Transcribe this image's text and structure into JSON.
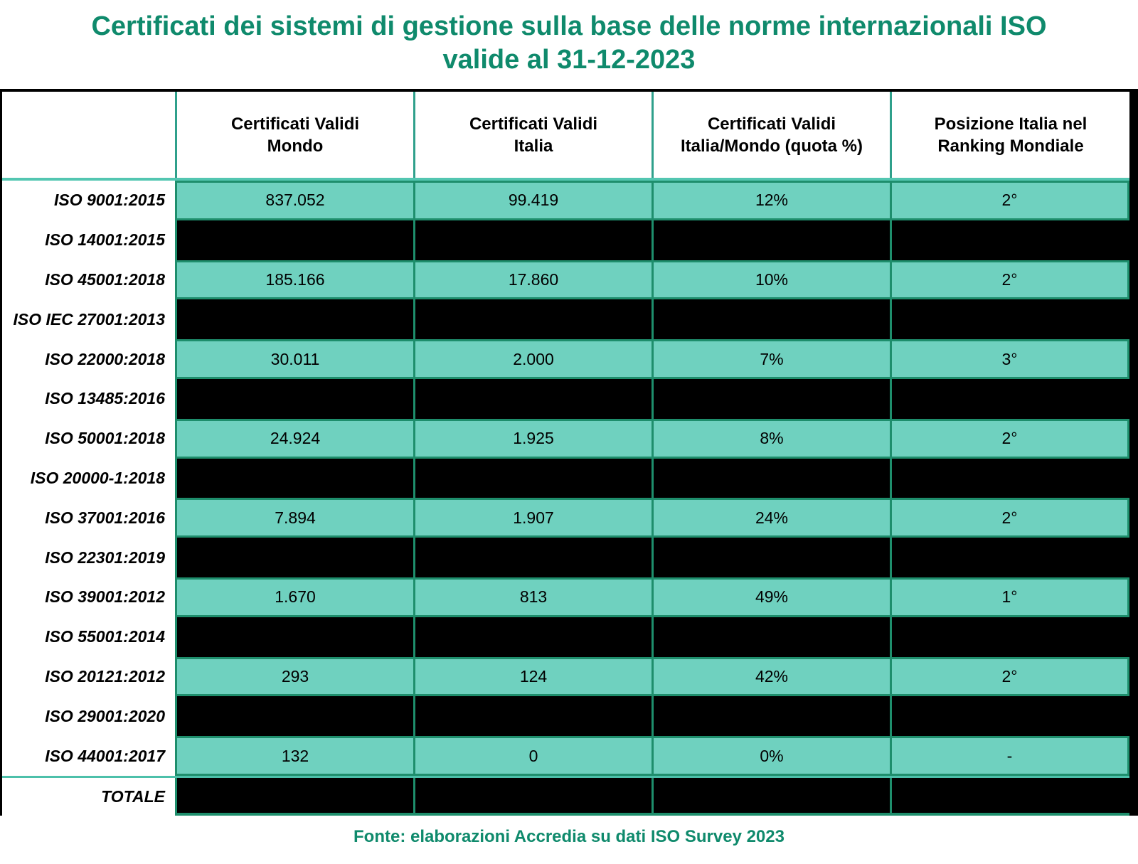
{
  "title": {
    "line1": "Certificati dei sistemi di gestione sulla base delle norme internazionali ISO",
    "line2": "valide al 31-12-2023"
  },
  "footer": {
    "source": "Fonte: elaborazioni Accredia su dati ISO Survey 2023"
  },
  "colors": {
    "accent_teal_text": "#0f8a6c",
    "cell_fill_teal": "#6fd1bf",
    "cell_border_dark_teal": "#1e8e6c",
    "header_separator_teal": "#2fa08b",
    "header_underline_teal": "#53c6b1",
    "blackout": "#000000",
    "background": "#ffffff"
  },
  "chart_data": {
    "type": "table",
    "title": "Certificati dei sistemi di gestione sulla base delle norme internazionali ISO valide al 31-12-2023",
    "columns": [
      {
        "line1": "Certificati Validi",
        "line2": "Mondo"
      },
      {
        "line1": "Certificati Validi",
        "line2": "Italia"
      },
      {
        "line1": "Certificati Validi",
        "line2": "Italia/Mondo (quota %)"
      },
      {
        "line1": "Posizione Italia nel",
        "line2": "Ranking Mondiale"
      }
    ],
    "rows": [
      {
        "label": "ISO 9001:2015",
        "blackout": false,
        "values": [
          "837.052",
          "99.419",
          "12%",
          "2°"
        ]
      },
      {
        "label": "ISO 14001:2015",
        "blackout": true,
        "values": [
          null,
          null,
          null,
          null
        ]
      },
      {
        "label": "ISO 45001:2018",
        "blackout": false,
        "values": [
          "185.166",
          "17.860",
          "10%",
          "2°"
        ]
      },
      {
        "label": "ISO IEC 27001:2013",
        "blackout": true,
        "values": [
          null,
          null,
          null,
          null
        ]
      },
      {
        "label": "ISO 22000:2018",
        "blackout": false,
        "values": [
          "30.011",
          "2.000",
          "7%",
          "3°"
        ]
      },
      {
        "label": "ISO 13485:2016",
        "blackout": true,
        "values": [
          null,
          null,
          null,
          null
        ]
      },
      {
        "label": "ISO 50001:2018",
        "blackout": false,
        "values": [
          "24.924",
          "1.925",
          "8%",
          "2°"
        ]
      },
      {
        "label": "ISO 20000-1:2018",
        "blackout": true,
        "values": [
          null,
          null,
          null,
          null
        ]
      },
      {
        "label": "ISO 37001:2016",
        "blackout": false,
        "values": [
          "7.894",
          "1.907",
          "24%",
          "2°"
        ]
      },
      {
        "label": "ISO 22301:2019",
        "blackout": true,
        "values": [
          null,
          null,
          null,
          null
        ]
      },
      {
        "label": "ISO 39001:2012",
        "blackout": false,
        "values": [
          "1.670",
          "813",
          "49%",
          "1°"
        ]
      },
      {
        "label": "ISO 55001:2014",
        "blackout": true,
        "values": [
          null,
          null,
          null,
          null
        ]
      },
      {
        "label": "ISO 20121:2012",
        "blackout": false,
        "values": [
          "293",
          "124",
          "42%",
          "2°"
        ]
      },
      {
        "label": "ISO 29001:2020",
        "blackout": true,
        "values": [
          null,
          null,
          null,
          null
        ]
      },
      {
        "label": "ISO 44001:2017",
        "blackout": false,
        "values": [
          "132",
          "0",
          "0%",
          "-"
        ]
      },
      {
        "label": "TOTALE",
        "blackout": true,
        "values": [
          null,
          null,
          null,
          null
        ]
      }
    ]
  }
}
